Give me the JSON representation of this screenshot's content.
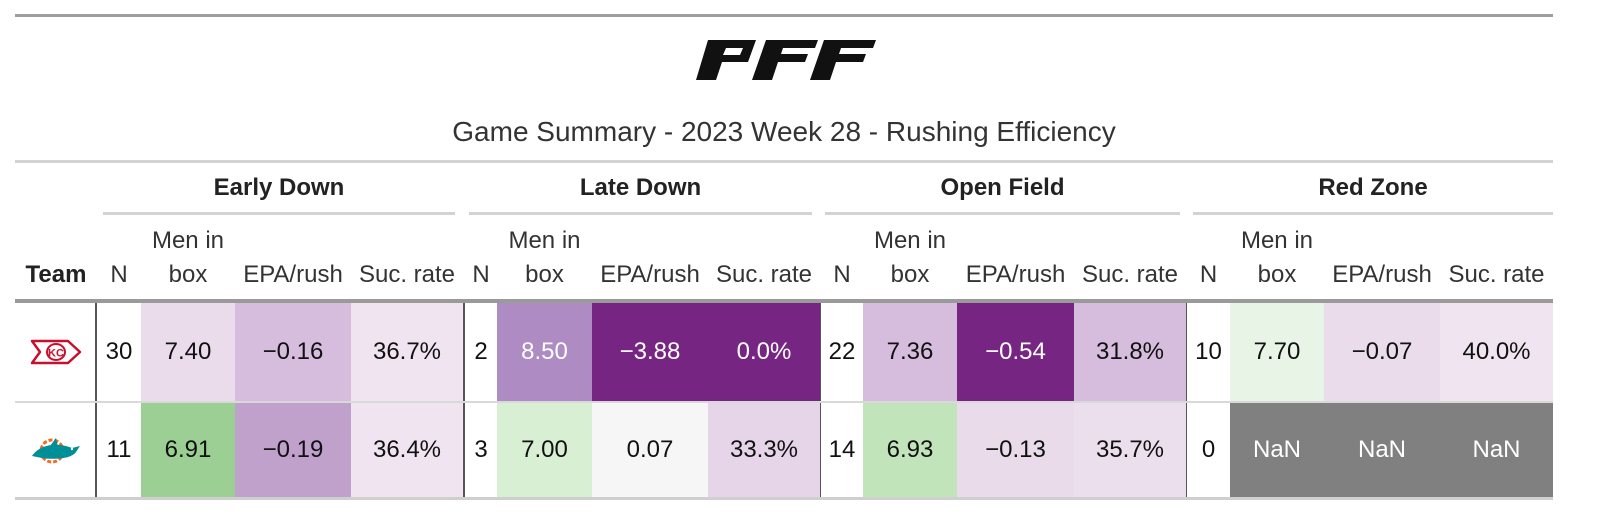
{
  "title": "Game Summary - 2023 Week 28 - Rushing Efficiency",
  "logo": {
    "name": "pff-logo",
    "text": "PFF"
  },
  "groups": [
    "Early Down",
    "Late Down",
    "Open Field",
    "Red Zone"
  ],
  "columns": {
    "team": "Team",
    "n": "N",
    "men_in_box": "Men in box",
    "epa_rush": "EPA/rush",
    "suc_rate": "Suc. rate"
  },
  "rows": [
    {
      "team_icon": "chiefs-logo-icon",
      "cells": [
        "30",
        "7.40",
        "−0.16",
        "36.7%",
        "2",
        "8.50",
        "−3.88",
        "0.0%",
        "22",
        "7.36",
        "−0.54",
        "31.8%",
        "10",
        "7.70",
        "−0.07",
        "40.0%"
      ]
    },
    {
      "team_icon": "dolphins-logo-icon",
      "cells": [
        "11",
        "6.91",
        "−0.19",
        "36.4%",
        "3",
        "7.00",
        "0.07",
        "33.3%",
        "14",
        "6.93",
        "−0.13",
        "35.7%",
        "0",
        "NaN",
        "NaN",
        "NaN"
      ]
    }
  ],
  "colors": {
    "purple_dark": "#772583",
    "purple_mid": "#ae8bc3",
    "purple_light": "#d7bddd",
    "purple_faint": "#eadcea",
    "purple_pale": "#efe4f0",
    "green_mid": "#9bcf93",
    "green_light": "#c1e4bb",
    "green_pale": "#d9efd4",
    "green_faint": "#e8f4e6",
    "neutral": "#f6f6f6",
    "nan_gray": "#808080"
  }
}
